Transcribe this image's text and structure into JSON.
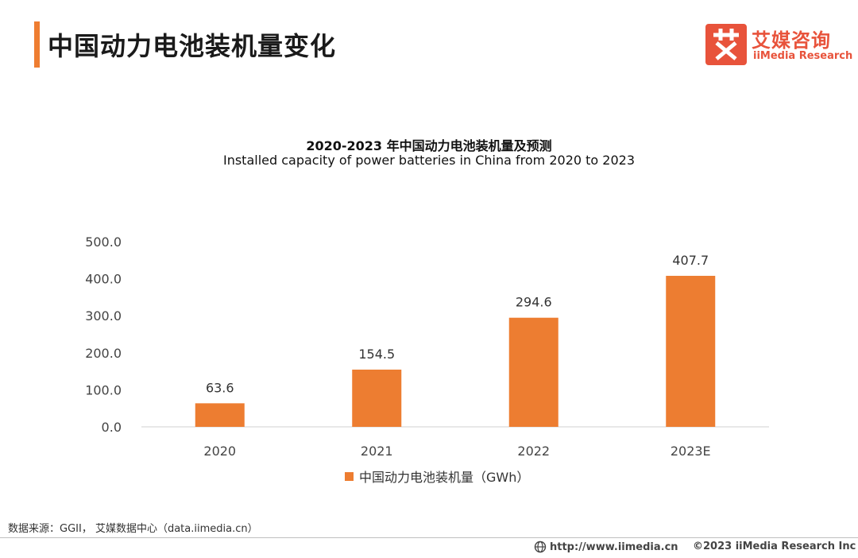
{
  "page": {
    "title": "中国动力电池装机量变化"
  },
  "brand": {
    "logo_char": "艾",
    "name_cn": "艾媒咨询",
    "name_en": "iiMedia Research"
  },
  "colors": {
    "accent": "#ee7d31",
    "bar": "#ed7d31",
    "brand": "#e8533b"
  },
  "chart_data": {
    "type": "bar",
    "title": "2020-2023 年中国动力电池装机量及预测",
    "subtitle": "Installed capacity of power batteries in China from 2020 to 2023",
    "categories": [
      "2020",
      "2021",
      "2022",
      "2023E"
    ],
    "series": [
      {
        "name": "中国动力电池装机量（GWh）",
        "values": [
          63.6,
          154.5,
          294.6,
          407.7
        ],
        "labels": [
          "63.6",
          "154.5",
          "294.6",
          "407.7"
        ]
      }
    ],
    "ylim": [
      0,
      500
    ],
    "yticks": [
      "0.0",
      "100.0",
      "200.0",
      "300.0",
      "400.0",
      "500.0"
    ],
    "xlabel": "",
    "ylabel": "",
    "grid": false,
    "legend": "bottom"
  },
  "footer": {
    "source": "数据来源：GGII，  艾媒数据中心（data.iimedia.cn）",
    "url_icon": "globe-icon",
    "url": "http://www.iimedia.cn",
    "copyright": "©2023  iiMedia Research  Inc"
  }
}
